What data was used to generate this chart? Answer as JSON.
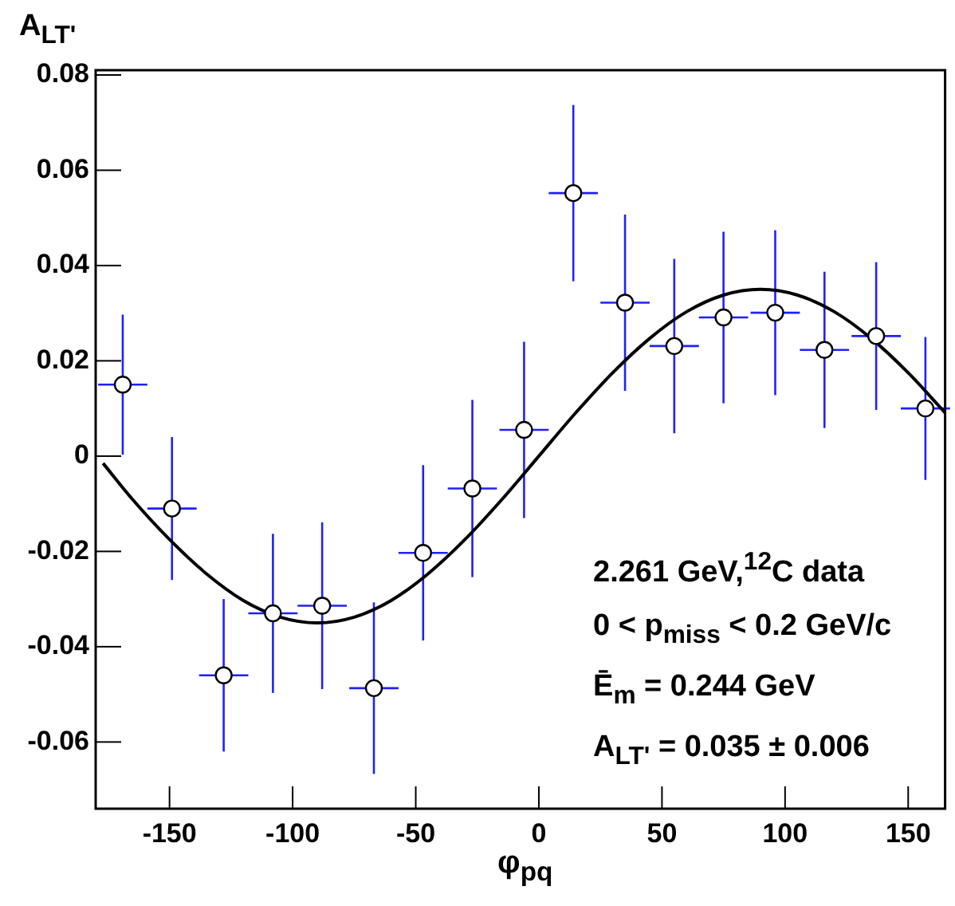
{
  "chart_data": {
    "type": "scatter",
    "xlabel": "φ$_{pq}$",
    "ylabel": "A$_{LT'}$",
    "annotations": [
      "2.261 GeV,$^{12}$C data",
      "0 < p$_{miss}$ < 0.2 GeV/c",
      "Ē$_{m}$ = 0.244 GeV",
      "A$_{LT'}$ = 0.035 ± 0.006"
    ],
    "x": [
      -169,
      -149,
      -128,
      -108,
      -88,
      -67,
      -47,
      -27,
      -6,
      14,
      35,
      55,
      75,
      96,
      116,
      137,
      157
    ],
    "series": [
      {
        "color": "#ffffff",
        "marker": "circle",
        "values": [
          0.015,
          -0.011,
          -0.046,
          -0.033,
          -0.0314,
          -0.0487,
          -0.0203,
          -0.0068,
          0.0055,
          0.0552,
          0.0322,
          0.0231,
          0.0291,
          0.0301,
          0.0223,
          0.0252,
          0.01
        ],
        "errors": [
          0.0147,
          0.015,
          0.016,
          0.0167,
          0.0175,
          0.018,
          0.0184,
          0.0186,
          0.0185,
          0.0185,
          0.0185,
          0.0183,
          0.018,
          0.0173,
          0.0164,
          0.0155,
          0.015
        ],
        "xerrors": [
          10,
          10,
          10,
          10,
          10,
          10,
          10,
          10,
          10,
          10,
          10,
          10,
          10,
          10,
          10,
          10,
          10
        ]
      },
      {
        "type": "line",
        "color": "#000000",
        "marker": "none",
        "x": [
          -177,
          -165,
          -150,
          -135,
          -120,
          -105,
          -90,
          -75,
          -60,
          -45,
          -30,
          -15,
          0,
          15,
          30,
          45,
          60,
          75,
          90,
          105,
          120,
          135,
          150,
          165
        ],
        "values": [
          -0.0015,
          -0.0091,
          -0.0175,
          -0.0247,
          -0.0303,
          -0.0338,
          -0.035,
          -0.0338,
          -0.0303,
          -0.0247,
          -0.0175,
          -0.0091,
          0,
          0.0091,
          0.0175,
          0.0247,
          0.0303,
          0.0338,
          0.035,
          0.0338,
          0.0303,
          0.0247,
          0.0175,
          0.0091
        ]
      }
    ],
    "xlim": [
      -180,
      165
    ],
    "ylim": [
      -0.074,
      0.081
    ],
    "xticks": [
      -150,
      -100,
      -50,
      0,
      50,
      100,
      150
    ],
    "yticks": [
      -0.06,
      -0.04,
      -0.02,
      0,
      0.02,
      0.04,
      0.06,
      0.08
    ],
    "grid": false,
    "legend": false
  }
}
